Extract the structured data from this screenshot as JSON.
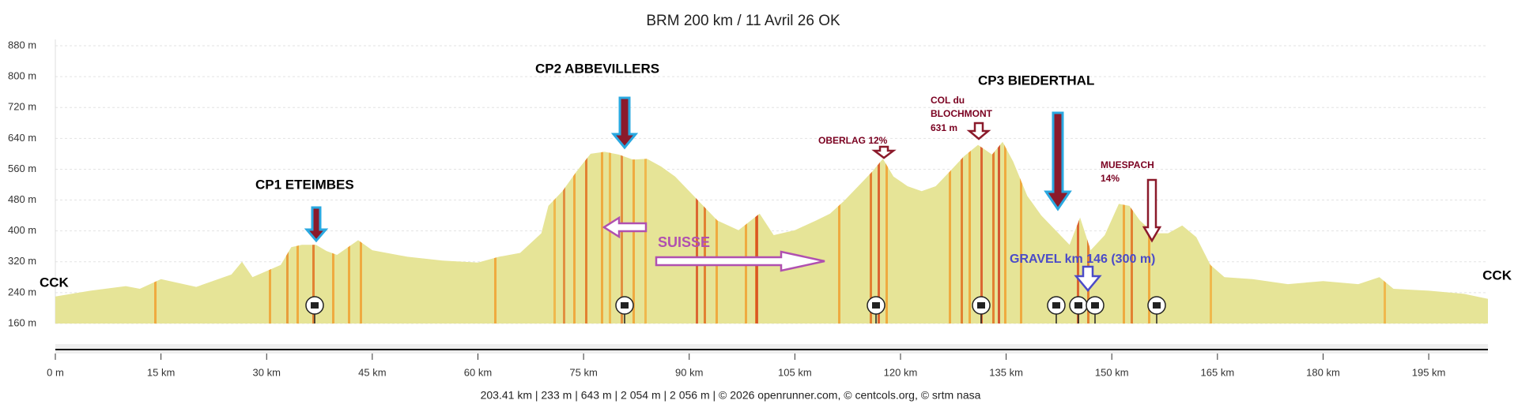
{
  "chart_data": {
    "type": "area",
    "title": "BRM 200 km / 11 Avril 26 OK",
    "x": [
      0,
      5,
      10,
      12,
      15,
      20,
      25,
      26.5,
      28,
      32,
      33.5,
      35,
      37,
      38.5,
      40,
      43,
      45,
      50,
      55,
      60,
      63,
      66,
      69,
      70,
      72,
      74,
      76,
      78,
      80,
      82,
      84,
      86,
      88,
      90,
      92,
      94,
      97,
      100,
      102,
      105,
      108,
      110,
      112,
      114,
      116,
      117.5,
      119,
      121,
      123,
      125,
      127,
      129,
      131,
      133,
      134.5,
      136,
      138,
      140,
      142,
      144,
      145.5,
      147,
      149,
      151,
      152.5,
      154,
      156,
      158,
      160,
      162,
      164,
      166,
      170,
      175,
      180,
      185,
      188,
      190,
      195,
      200,
      203.41
    ],
    "values": [
      230,
      245,
      257,
      250,
      275,
      255,
      287,
      320,
      280,
      312,
      358,
      364,
      364,
      348,
      338,
      376,
      350,
      333,
      323,
      318,
      333,
      343,
      394,
      465,
      503,
      554,
      600,
      605,
      598,
      585,
      587,
      567,
      541,
      503,
      465,
      427,
      402,
      445,
      389,
      402,
      427,
      445,
      478,
      516,
      554,
      587,
      541,
      516,
      503,
      516,
      554,
      593,
      623,
      598,
      631,
      580,
      491,
      440,
      402,
      364,
      435,
      350,
      389,
      470,
      465,
      427,
      394,
      394,
      414,
      384,
      312,
      280,
      275,
      262,
      270,
      262,
      280,
      250,
      245,
      237,
      224
    ],
    "color": "#e6e497",
    "xlim": [
      0,
      203.41
    ],
    "ylim": [
      160,
      880
    ],
    "yticks": [
      {
        "value": 160,
        "label": "160 m"
      },
      {
        "value": 240,
        "label": "240 m"
      },
      {
        "value": 320,
        "label": "320 m"
      },
      {
        "value": 400,
        "label": "400 m"
      },
      {
        "value": 480,
        "label": "480 m"
      },
      {
        "value": 560,
        "label": "560 m"
      },
      {
        "value": 640,
        "label": "640 m"
      },
      {
        "value": 720,
        "label": "720 m"
      },
      {
        "value": 800,
        "label": "800 m"
      },
      {
        "value": 880,
        "label": "880 m"
      }
    ],
    "xticks": [
      {
        "value": 0,
        "label": "0 m"
      },
      {
        "value": 15,
        "label": "15 km"
      },
      {
        "value": 30,
        "label": "30 km"
      },
      {
        "value": 45,
        "label": "45 km"
      },
      {
        "value": 60,
        "label": "60 km"
      },
      {
        "value": 75,
        "label": "75 km"
      },
      {
        "value": 90,
        "label": "90 km"
      },
      {
        "value": 105,
        "label": "105 km"
      },
      {
        "value": 120,
        "label": "120 km"
      },
      {
        "value": 135,
        "label": "135 km"
      },
      {
        "value": 150,
        "label": "150 km"
      },
      {
        "value": 165,
        "label": "165 km"
      },
      {
        "value": 180,
        "label": "180 km"
      },
      {
        "value": 195,
        "label": "195 km"
      }
    ],
    "grid": true,
    "annotations": [
      "CP1  ETEIMBES",
      "CP2  ABBEVILLERS",
      "CP3  BIEDERTHAL",
      "OBERLAG 12%",
      "COL du",
      "BLOCHMONT",
      "631 m",
      "MUESPACH",
      "14%",
      "SUISSE",
      "GRAVEL km 146 (300 m)",
      "CCK",
      "CCK"
    ],
    "footer": "203.41 km | 233 m | 643 m | 2 054 m | 2 056 m | © 2026 openrunner.com, © centcols.org, © srtm nasa"
  }
}
